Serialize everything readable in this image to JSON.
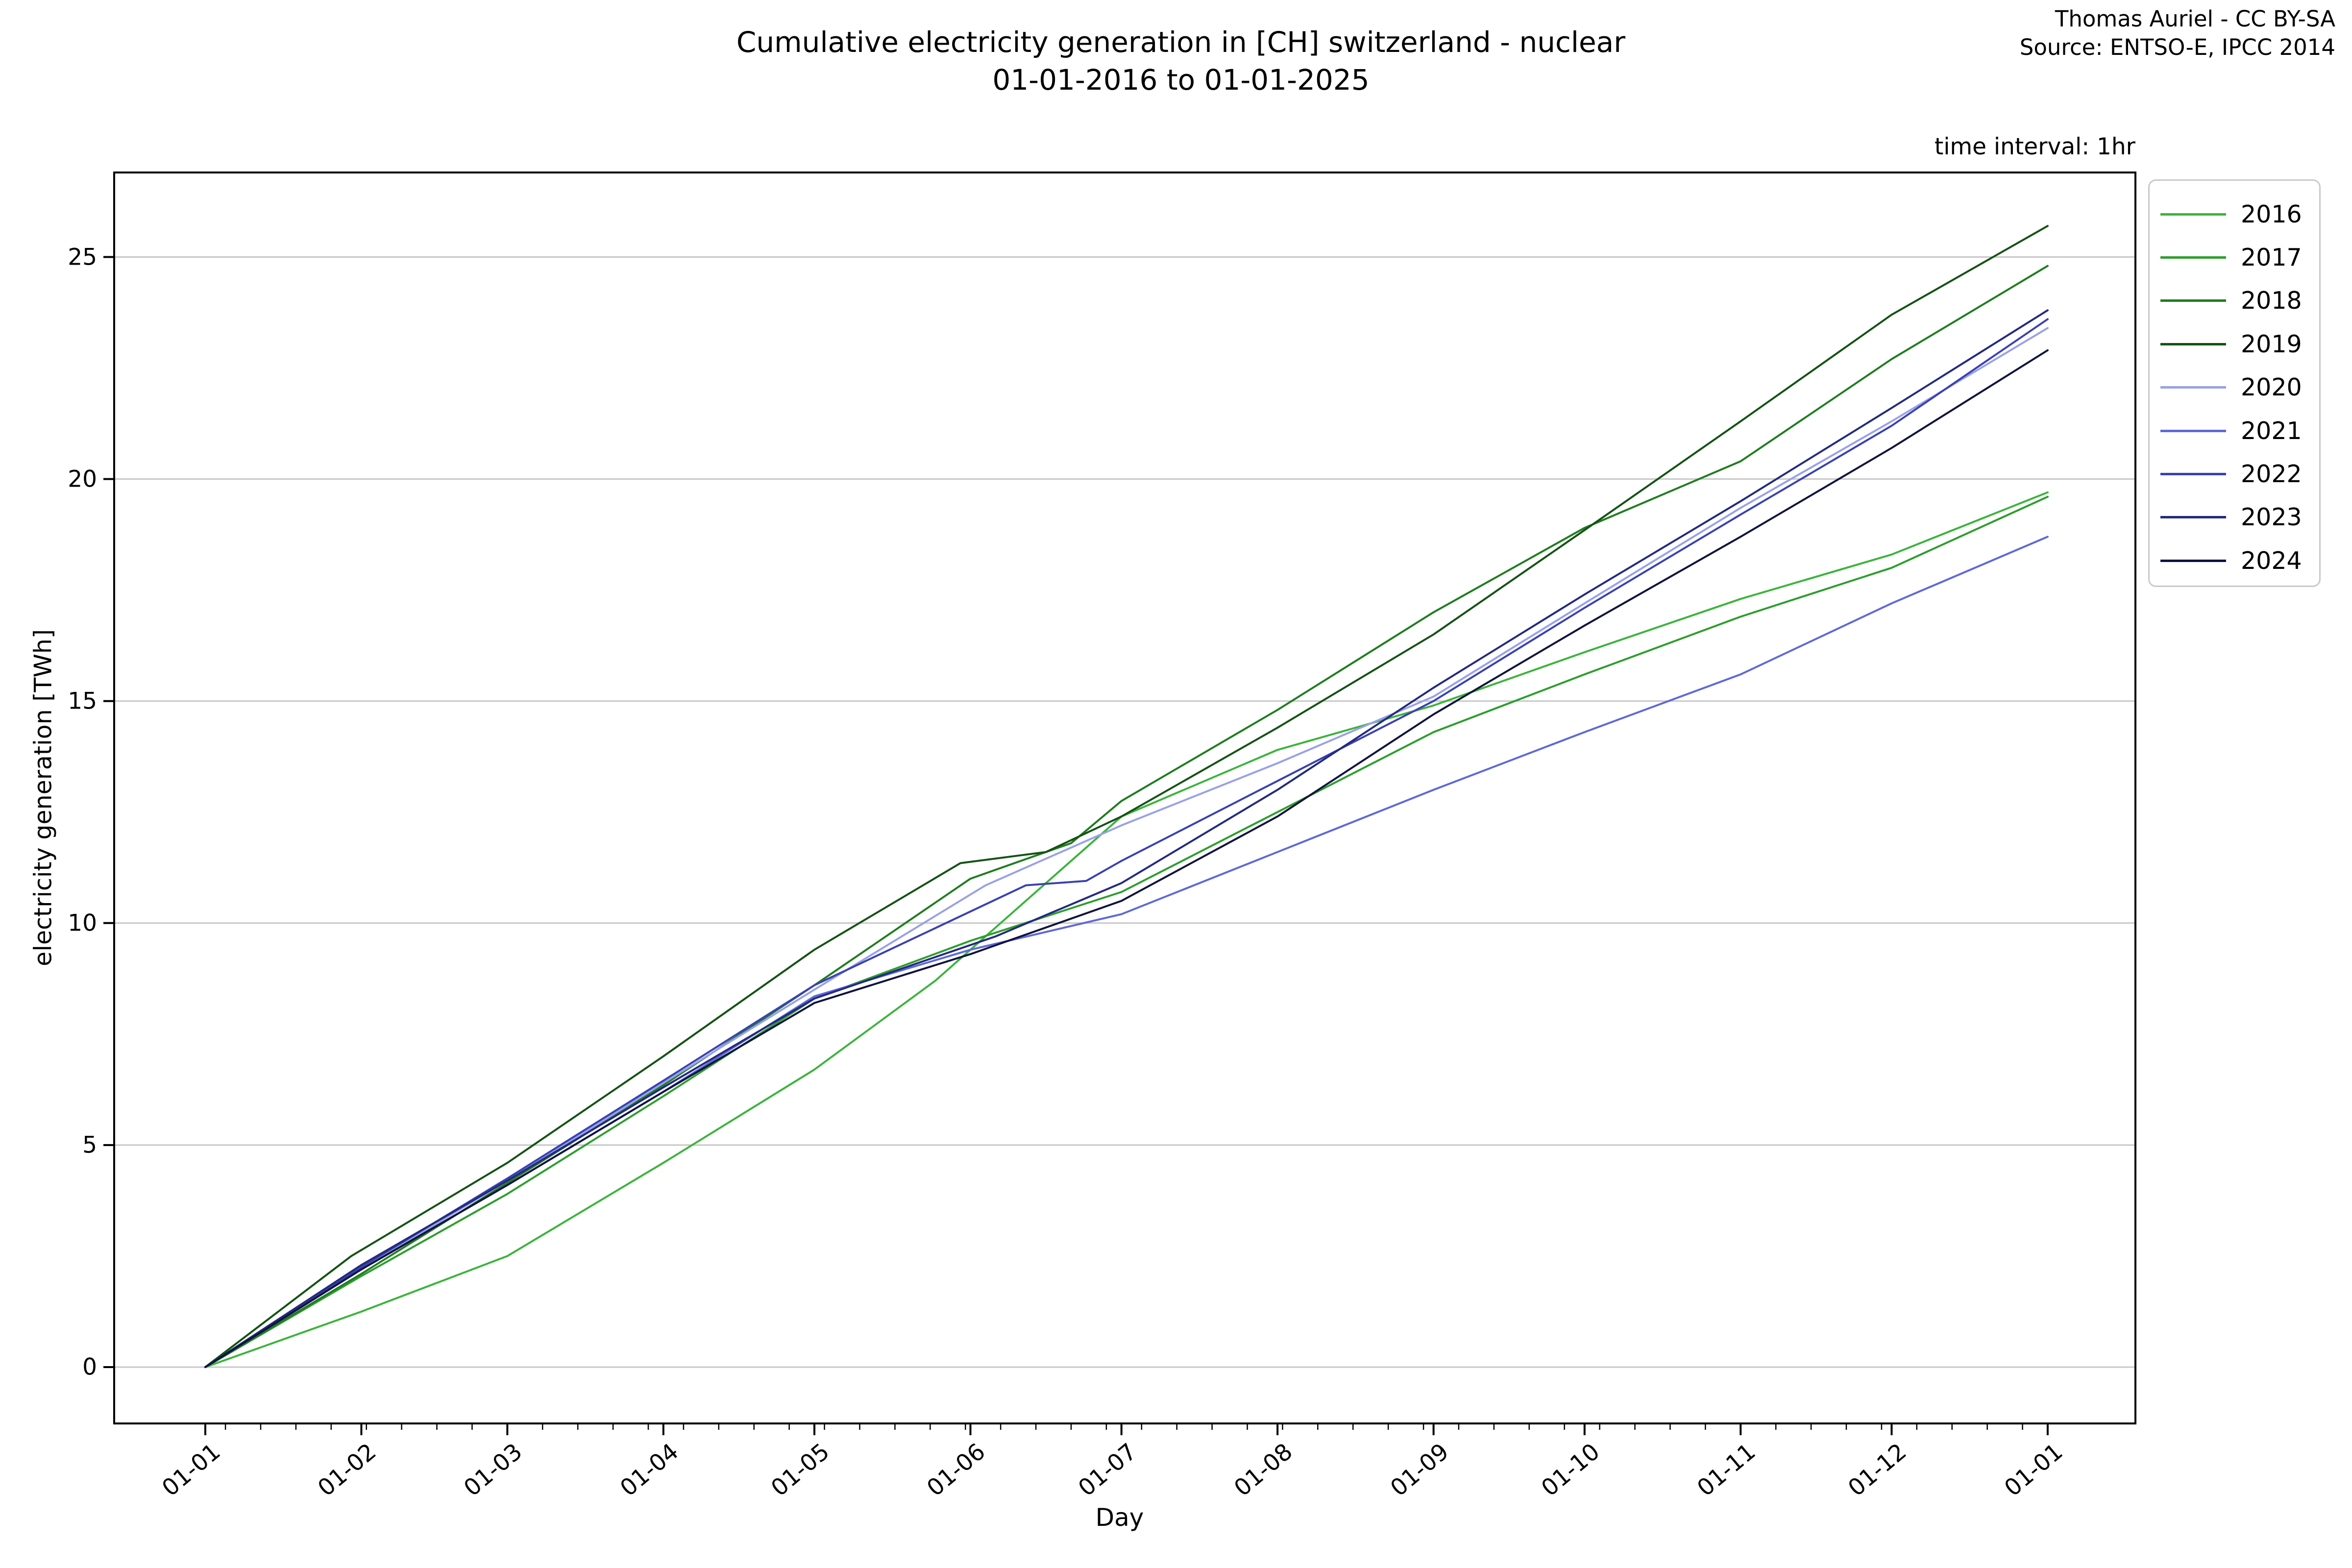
{
  "header": {
    "title_line1": "Cumulative electricity generation in [CH] switzerland - nuclear",
    "title_line2": "01-01-2016 to 01-01-2025",
    "attribution_line1": "Thomas Auriel - CC BY-SA",
    "attribution_line2": "Source: ENTSO-E, IPCC 2014",
    "time_interval_note": "time interval: 1hr"
  },
  "axes": {
    "x": {
      "label": "Day",
      "tick_labels": [
        "01-01",
        "01-02",
        "01-03",
        "01-04",
        "01-05",
        "01-06",
        "01-07",
        "01-08",
        "01-09",
        "01-10",
        "01-11",
        "01-12",
        "01-01"
      ],
      "tick_days": [
        0,
        31,
        60,
        91,
        121,
        152,
        182,
        213,
        244,
        274,
        305,
        335,
        366
      ],
      "minor_tick_start_day": 4,
      "minor_tick_step_days": 7
    },
    "y": {
      "label": "electricity generation [TWh]",
      "ticks": [
        0,
        5,
        10,
        15,
        20,
        25
      ]
    }
  },
  "chart_data": {
    "type": "line",
    "title": "Cumulative electricity generation in [CH] switzerland - nuclear 01-01-2016 to 01-01-2025",
    "xlabel": "Day",
    "ylabel": "electricity generation [TWh]",
    "x_unit": "day of year (0 = 01-01)",
    "xlim_days": [
      -18,
      384
    ],
    "ylim": [
      -1.3,
      26.9
    ],
    "grid": "horizontal only, light gray",
    "legend_position": "upper right, outside plot",
    "series": [
      {
        "name": "2016",
        "color": "#3cb43c",
        "end_value_TWh": 19.7,
        "points": [
          [
            0,
            0
          ],
          [
            31,
            1.25
          ],
          [
            60,
            2.5
          ],
          [
            91,
            4.6
          ],
          [
            121,
            6.7
          ],
          [
            145,
            8.7
          ],
          [
            182,
            12.4
          ],
          [
            213,
            13.9
          ],
          [
            244,
            14.9
          ],
          [
            274,
            16.1
          ],
          [
            305,
            17.3
          ],
          [
            335,
            18.3
          ],
          [
            366,
            19.7
          ]
        ]
      },
      {
        "name": "2017",
        "color": "#2d9e2d",
        "end_value_TWh": 19.6,
        "points": [
          [
            0,
            0
          ],
          [
            31,
            2.05
          ],
          [
            60,
            3.9
          ],
          [
            91,
            6.1
          ],
          [
            121,
            8.3
          ],
          [
            152,
            9.6
          ],
          [
            182,
            10.7
          ],
          [
            213,
            12.5
          ],
          [
            244,
            14.3
          ],
          [
            274,
            15.6
          ],
          [
            305,
            16.9
          ],
          [
            335,
            18.0
          ],
          [
            366,
            19.6
          ]
        ]
      },
      {
        "name": "2018",
        "color": "#1f7d1f",
        "end_value_TWh": 24.8,
        "points": [
          [
            0,
            0
          ],
          [
            31,
            2.1
          ],
          [
            60,
            4.15
          ],
          [
            91,
            6.35
          ],
          [
            121,
            8.6
          ],
          [
            152,
            11.0
          ],
          [
            172,
            11.8
          ],
          [
            182,
            12.75
          ],
          [
            213,
            14.8
          ],
          [
            244,
            17.0
          ],
          [
            274,
            18.9
          ],
          [
            305,
            20.4
          ],
          [
            335,
            22.7
          ],
          [
            366,
            24.8
          ]
        ]
      },
      {
        "name": "2019",
        "color": "#145214",
        "end_value_TWh": 25.7,
        "points": [
          [
            0,
            0
          ],
          [
            29,
            2.5
          ],
          [
            60,
            4.6
          ],
          [
            91,
            7.0
          ],
          [
            121,
            9.4
          ],
          [
            150,
            11.35
          ],
          [
            167,
            11.6
          ],
          [
            182,
            12.4
          ],
          [
            213,
            14.4
          ],
          [
            244,
            16.5
          ],
          [
            274,
            18.85
          ],
          [
            305,
            21.3
          ],
          [
            335,
            23.7
          ],
          [
            366,
            25.7
          ]
        ]
      },
      {
        "name": "2020",
        "color": "#99a1e8",
        "end_value_TWh": 23.4,
        "points": [
          [
            0,
            0
          ],
          [
            31,
            2.2
          ],
          [
            60,
            4.2
          ],
          [
            91,
            6.4
          ],
          [
            121,
            8.5
          ],
          [
            155,
            10.85
          ],
          [
            182,
            12.2
          ],
          [
            213,
            13.6
          ],
          [
            244,
            15.1
          ],
          [
            274,
            17.2
          ],
          [
            305,
            19.35
          ],
          [
            335,
            21.3
          ],
          [
            366,
            23.4
          ]
        ]
      },
      {
        "name": "2021",
        "color": "#5f68d8",
        "end_value_TWh": 18.7,
        "points": [
          [
            0,
            0
          ],
          [
            31,
            2.2
          ],
          [
            60,
            4.1
          ],
          [
            91,
            6.2
          ],
          [
            121,
            8.35
          ],
          [
            152,
            9.4
          ],
          [
            182,
            10.2
          ],
          [
            213,
            11.6
          ],
          [
            244,
            13.0
          ],
          [
            274,
            14.3
          ],
          [
            305,
            15.6
          ],
          [
            335,
            17.2
          ],
          [
            366,
            18.7
          ]
        ]
      },
      {
        "name": "2022",
        "color": "#3a41b2",
        "end_value_TWh": 23.6,
        "points": [
          [
            0,
            0
          ],
          [
            31,
            2.25
          ],
          [
            60,
            4.25
          ],
          [
            91,
            6.45
          ],
          [
            121,
            8.6
          ],
          [
            163,
            10.85
          ],
          [
            175,
            10.95
          ],
          [
            182,
            11.4
          ],
          [
            213,
            13.2
          ],
          [
            244,
            15.0
          ],
          [
            274,
            17.1
          ],
          [
            305,
            19.2
          ],
          [
            335,
            21.2
          ],
          [
            366,
            23.6
          ]
        ]
      },
      {
        "name": "2023",
        "color": "#232a7f",
        "end_value_TWh": 23.8,
        "points": [
          [
            0,
            0
          ],
          [
            31,
            2.3
          ],
          [
            60,
            4.2
          ],
          [
            91,
            6.3
          ],
          [
            121,
            8.3
          ],
          [
            157,
            9.7
          ],
          [
            182,
            10.9
          ],
          [
            213,
            13.0
          ],
          [
            244,
            15.3
          ],
          [
            274,
            17.4
          ],
          [
            305,
            19.5
          ],
          [
            335,
            21.6
          ],
          [
            366,
            23.8
          ]
        ]
      },
      {
        "name": "2024",
        "color": "#10133d",
        "end_value_TWh": 22.9,
        "points": [
          [
            0,
            0
          ],
          [
            31,
            2.2
          ],
          [
            60,
            4.1
          ],
          [
            91,
            6.2
          ],
          [
            121,
            8.2
          ],
          [
            152,
            9.3
          ],
          [
            182,
            10.5
          ],
          [
            213,
            12.4
          ],
          [
            244,
            14.7
          ],
          [
            274,
            16.7
          ],
          [
            305,
            18.7
          ],
          [
            335,
            20.7
          ],
          [
            366,
            22.9
          ]
        ]
      }
    ]
  },
  "style": {
    "grid_color": "#c8c8c8",
    "spine_color": "#000000",
    "background": "#ffffff",
    "legend_border_color": "#c9c9c9"
  }
}
